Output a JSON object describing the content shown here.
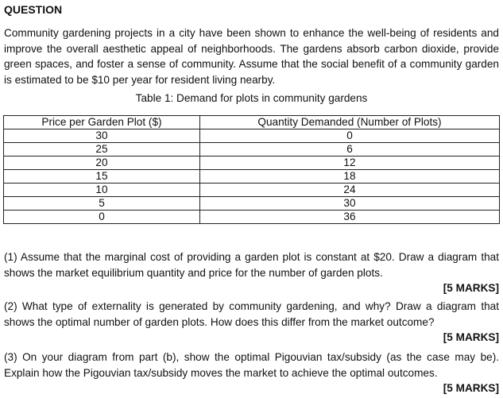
{
  "heading": "QUESTION",
  "intro": "Community gardening projects in a city have been shown to enhance the well-being of residents and improve the overall aesthetic appeal of neighborhoods. The gardens absorb carbon dioxide, provide green spaces, and foster a sense of community. Assume that the social benefit of a community garden is estimated to be $10 per year for resident living nearby.",
  "table": {
    "caption": "Table 1: Demand for plots in community gardens",
    "headers": [
      "Price per Garden Plot ($)",
      "Quantity Demanded (Number of Plots)"
    ],
    "rows": [
      [
        "30",
        "0"
      ],
      [
        "25",
        "6"
      ],
      [
        "20",
        "12"
      ],
      [
        "15",
        "18"
      ],
      [
        "10",
        "24"
      ],
      [
        "5",
        "30"
      ],
      [
        "0",
        "36"
      ]
    ]
  },
  "questions": [
    {
      "text": "(1) Assume that the marginal cost of providing a garden plot is constant at $20. Draw a diagram that shows the market equilibrium quantity and price for the number of garden plots.",
      "marks": "[5 MARKS]"
    },
    {
      "text": "(2) What type of externality is generated by community gardening, and why? Draw a diagram that shows the optimal number of garden plots. How does this differ from the market outcome?",
      "marks": "[5 MARKS]"
    },
    {
      "text": "(3) On your diagram from part (b), show the optimal Pigouvian tax/subsidy (as the case may be). Explain how the Pigouvian tax/subsidy moves the market to achieve the optimal outcomes.",
      "marks": "[5 MARKS]"
    }
  ]
}
